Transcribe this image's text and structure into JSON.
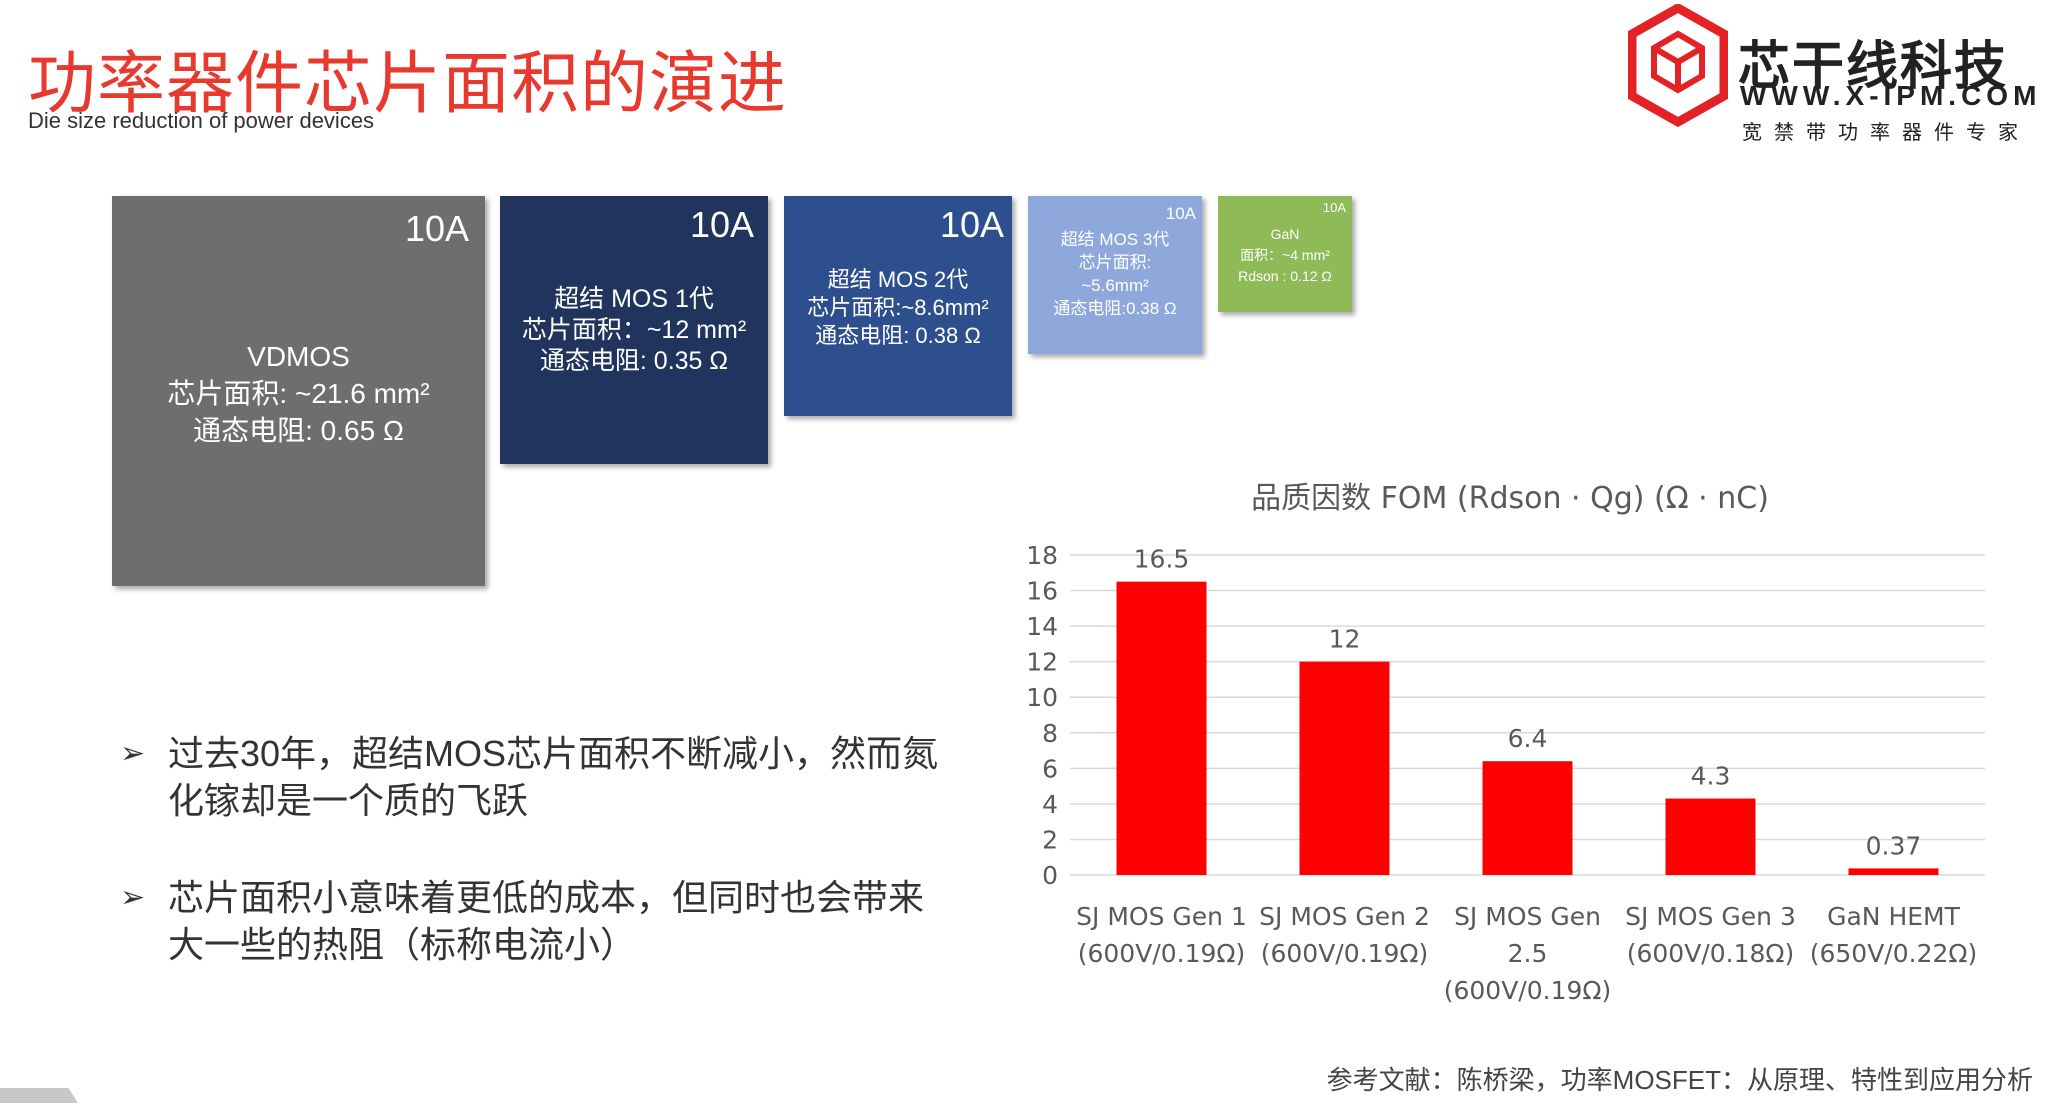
{
  "header": {
    "title": "功率器件芯片面积的演进",
    "subtitle": "Die size reduction of power devices"
  },
  "logo": {
    "name": "芯干线科技",
    "url": "WWW.X-IPM.COM",
    "tagline": "宽禁带功率器件专家"
  },
  "dies": [
    {
      "current": "10A",
      "lines": [
        "VDMOS",
        "芯片面积: ~21.6 mm²",
        "通态电阻: 0.65 Ω"
      ],
      "color": "#6e6e6e"
    },
    {
      "current": "10A",
      "lines": [
        "超结 MOS 1代",
        "芯片面积：~12 mm²",
        "通态电阻: 0.35 Ω"
      ],
      "color": "#20345e"
    },
    {
      "current": "10A",
      "lines": [
        "超结 MOS 2代",
        "芯片面积:~8.6mm²",
        "通态电阻: 0.38 Ω"
      ],
      "color": "#2e4f8d"
    },
    {
      "current": "10A",
      "lines": [
        "超结 MOS 3代",
        "芯片面积:",
        "~5.6mm²",
        "通态电阻:0.38 Ω"
      ],
      "color": "#8ea8dc"
    },
    {
      "current": "10A",
      "lines": [
        "GaN",
        "面积：~4 mm²",
        "Rdson : 0.12 Ω"
      ],
      "color": "#8ebb57"
    }
  ],
  "bullets": [
    "过去30年，超结MOS芯片面积不断减小，然而氮化镓却是一个质的飞跃",
    "芯片面积小意味着更低的成本，但同时也会带来大一些的热阻（标称电流小）"
  ],
  "chart_data": {
    "type": "bar",
    "title": "品质因数 FOM (Rdson · Qg) (Ω · nC)",
    "categories": [
      [
        "SJ MOS Gen 1",
        "(600V/0.19Ω)"
      ],
      [
        "SJ MOS Gen 2",
        "(600V/0.19Ω)"
      ],
      [
        "SJ MOS Gen",
        "2.5",
        "(600V/0.19Ω)"
      ],
      [
        "SJ MOS Gen 3",
        "(600V/0.18Ω)"
      ],
      [
        "GaN HEMT",
        "(650V/0.22Ω)"
      ]
    ],
    "values": [
      16.5,
      12,
      6.4,
      4.3,
      0.37
    ],
    "data_labels": [
      "16.5",
      "12",
      "6.4",
      "4.3",
      "0.37"
    ],
    "yticks": [
      "0",
      "2",
      "4",
      "6",
      "8",
      "10",
      "12",
      "14",
      "16",
      "18"
    ],
    "ylim": [
      0,
      18
    ],
    "grid": true,
    "bar_color": "#ff0000"
  },
  "reference": "参考文献：陈桥梁，功率MOSFET：从原理、特性到应用分析"
}
